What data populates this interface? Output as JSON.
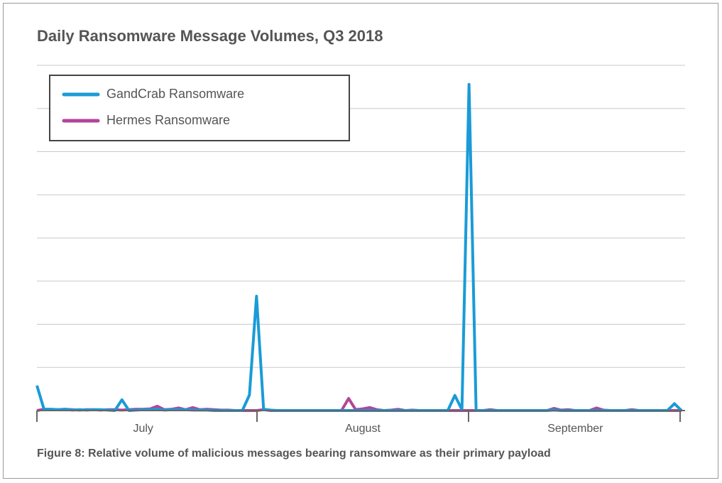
{
  "chart_data": {
    "type": "line",
    "title": "Daily Ransomware Message Volumes, Q3 2018",
    "caption": "Figure 8: Relative volume of malicious messages bearing ransomware as their primary payload",
    "categories": [
      null,
      null,
      null,
      null,
      null,
      null,
      null,
      null,
      null,
      null,
      null,
      null,
      null,
      null,
      null,
      "July",
      null,
      null,
      null,
      null,
      null,
      null,
      null,
      null,
      null,
      null,
      null,
      null,
      null,
      null,
      null,
      null,
      null,
      null,
      null,
      null,
      null,
      null,
      null,
      null,
      null,
      null,
      null,
      null,
      null,
      null,
      "August",
      null,
      null,
      null,
      null,
      null,
      null,
      null,
      null,
      null,
      null,
      null,
      null,
      null,
      null,
      null,
      null,
      null,
      null,
      null,
      null,
      null,
      null,
      null,
      null,
      null,
      null,
      null,
      null,
      null,
      "September",
      null,
      null,
      null,
      null,
      null,
      null,
      null,
      null,
      null,
      null,
      null,
      null,
      null,
      null,
      null
    ],
    "series": [
      {
        "name": "Hermes Ransomware",
        "color": "#b5449a",
        "values": [
          0,
          0.03,
          0.02,
          0.02,
          0.03,
          0.02,
          0.01,
          0.02,
          0.02,
          0.01,
          0.02,
          0.02,
          0.01,
          0.02,
          0.03,
          0.03,
          0.04,
          0.1,
          0.02,
          0.03,
          0.06,
          0.02,
          0.07,
          0.02,
          0.03,
          0.02,
          0.01,
          0.01,
          0,
          0,
          0,
          0,
          0.02,
          0,
          0,
          0,
          0,
          0,
          0,
          0,
          0,
          0,
          0,
          0,
          0.28,
          0.02,
          0.04,
          0.07,
          0.02,
          0,
          0.01,
          0.03,
          0,
          0.01,
          0,
          0,
          0,
          0,
          0,
          0,
          0,
          0,
          0,
          0,
          0.02,
          0,
          0,
          0,
          0,
          0,
          0,
          0,
          0,
          0.05,
          0.01,
          0.02,
          0,
          0,
          0,
          0.06,
          0.01,
          0,
          0,
          0,
          0.02,
          0,
          0,
          0,
          0,
          0,
          0,
          0
        ]
      },
      {
        "name": "GandCrab Ransomware",
        "color": "#1a9bd7",
        "values": [
          0.58,
          0.03,
          0.03,
          0.02,
          0.03,
          0.01,
          0.02,
          0.01,
          0.02,
          0.02,
          0.01,
          0,
          0.25,
          0,
          0.01,
          0.02,
          0.02,
          0.03,
          0.01,
          0.02,
          0.02,
          0.02,
          0.01,
          0.01,
          0.01,
          0,
          0,
          0,
          0,
          0,
          0.36,
          2.65,
          0.03,
          0.01,
          0,
          0,
          0,
          0,
          0,
          0,
          0,
          0,
          0,
          0,
          0,
          0,
          0,
          0,
          0,
          0,
          0,
          0,
          0,
          0,
          0,
          0,
          0,
          0,
          0,
          0.35,
          0.02,
          7.56,
          0,
          0,
          0,
          0,
          0,
          0,
          0,
          0,
          0,
          0,
          0,
          0.01,
          0,
          0,
          0,
          0,
          0,
          0,
          0,
          0,
          0,
          0,
          0,
          0,
          0,
          0,
          0,
          0,
          0.16,
          0
        ]
      }
    ],
    "ylim": [
      0,
      8
    ],
    "yticks": [
      0,
      1,
      2,
      3,
      4,
      5,
      6,
      7,
      8
    ],
    "grid": true
  }
}
